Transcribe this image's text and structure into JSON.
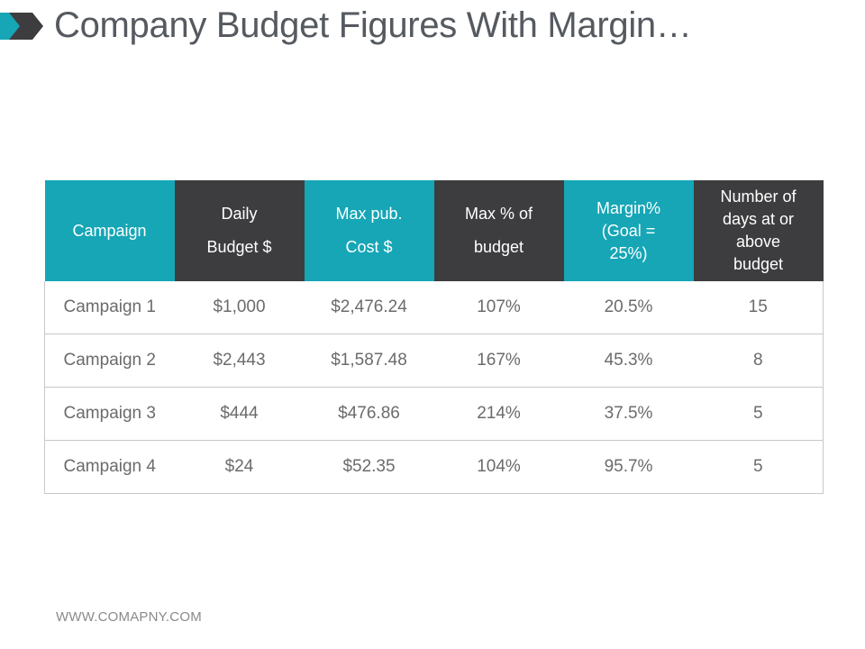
{
  "header": {
    "title": "Company Budget Figures With Margin…",
    "accent_color": "#16a6b6",
    "dark_color": "#3d3d3f",
    "icon": "double-chevron-icon"
  },
  "table": {
    "headers": [
      "Campaign",
      "Daily\nBudget $",
      "Max pub.\nCost $",
      "Max % of\nbudget",
      "Margin%\n(Goal =\n25%)",
      "Number of\ndays at or\nabove\nbudget"
    ],
    "rows": [
      [
        "Campaign 1",
        "$1,000",
        "$2,476.24",
        "107%",
        "20.5%",
        "15"
      ],
      [
        "Campaign 2",
        "$2,443",
        "$1,587.48",
        "167%",
        "45.3%",
        "8"
      ],
      [
        "Campaign 3",
        "$444",
        "$476.86",
        "214%",
        "37.5%",
        "5"
      ],
      [
        "Campaign 4",
        "$24",
        "$52.35",
        "104%",
        "95.7%",
        "5"
      ]
    ]
  },
  "footer": {
    "website": "WWW.COMAPNY.COM"
  }
}
